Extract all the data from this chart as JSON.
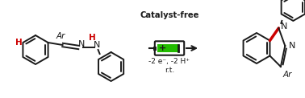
{
  "bg_color": "#ffffff",
  "bond_color": "#1a1a1a",
  "red_color": "#cc0000",
  "green_color": "#22bb00",
  "title": "Catalyst-free",
  "sub1": "-2 e⁻, -2 H⁺",
  "sub2": "r.t.",
  "figsize": [
    3.78,
    1.22
  ],
  "dpi": 100
}
